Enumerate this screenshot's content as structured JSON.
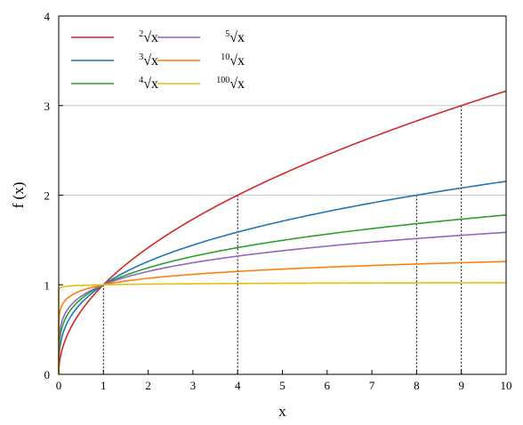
{
  "chart_data": {
    "type": "line",
    "xlabel": "x",
    "ylabel": "f (x)",
    "xlim": [
      0,
      10
    ],
    "ylim": [
      0,
      4
    ],
    "xticks": [
      "0",
      "1",
      "2",
      "3",
      "4",
      "5",
      "6",
      "7",
      "8",
      "9",
      "10"
    ],
    "yticks": [
      "0",
      "1",
      "2",
      "3",
      "4"
    ],
    "grid": "horizontal gridlines at y = 2 and y = 3",
    "legend_position": "top-left",
    "series": [
      {
        "name": "²√x",
        "index": "2",
        "root": 2,
        "color": "#d62728"
      },
      {
        "name": "³√x",
        "index": "3",
        "root": 3,
        "color": "#1f77b4"
      },
      {
        "name": "⁴√x",
        "index": "4",
        "root": 4,
        "color": "#2ca02c"
      },
      {
        "name": "⁵√x",
        "index": "5",
        "root": 5,
        "color": "#9467bd"
      },
      {
        "name": "¹⁰√x",
        "index": "10",
        "root": 10,
        "color": "#ff7f0e"
      },
      {
        "name": "¹⁰⁰√x",
        "index": "100",
        "root": 100,
        "color": "#e5c00b"
      }
    ],
    "reference_points": [
      {
        "x": 1,
        "y": 1
      },
      {
        "x": 4,
        "y": 2
      },
      {
        "x": 8,
        "y": 2
      },
      {
        "x": 9,
        "y": 3
      }
    ],
    "radical_symbol": "√",
    "legend_variable": "x"
  }
}
